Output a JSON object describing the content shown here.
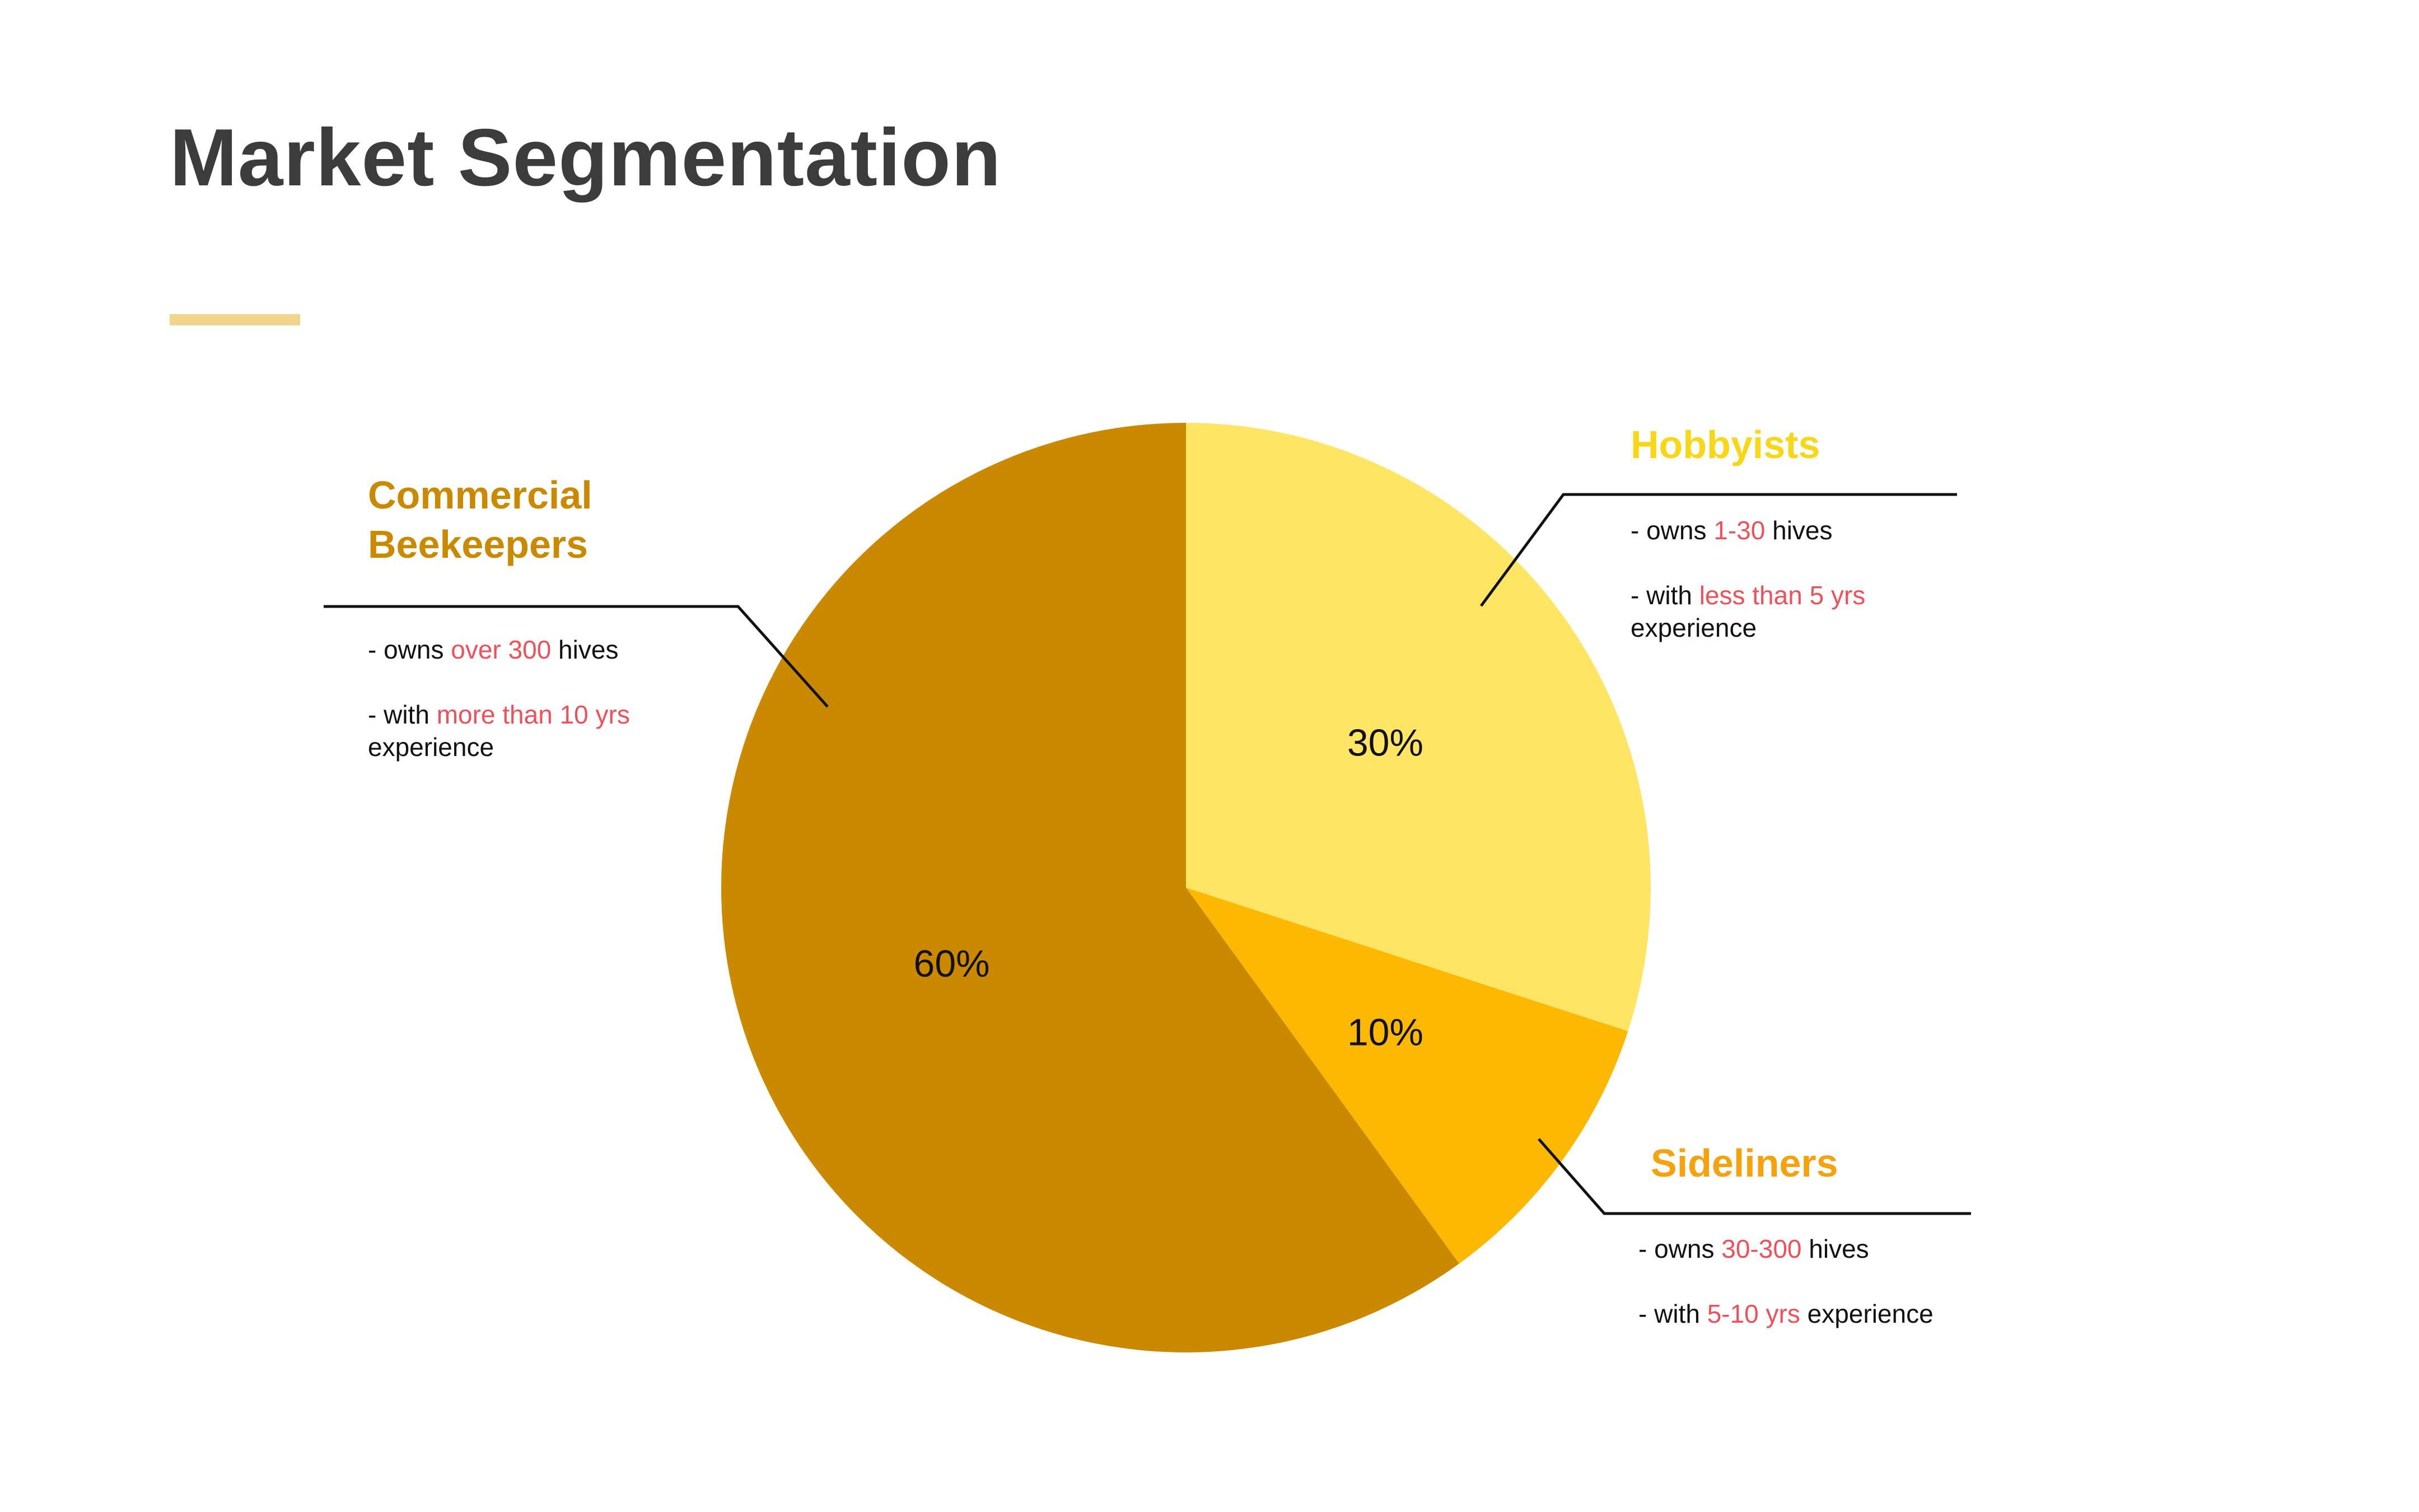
{
  "slide": {
    "title": "Market Segmentation",
    "accent_color": "#f2d48c"
  },
  "chart_data": {
    "type": "pie",
    "slices": [
      {
        "label": "Hobbyists",
        "value": 30,
        "display": "30%",
        "color": "#ffe564"
      },
      {
        "label": "Sideliners",
        "value": 10,
        "display": "10%",
        "color": "#fdb802"
      },
      {
        "label": "Commercial Beekeepers",
        "value": 60,
        "display": "60%",
        "color": "#cb8900"
      }
    ]
  },
  "segments": {
    "commercial": {
      "title_line1": "Commercial",
      "title_line2": "Beekeepers",
      "color": "#cb8900",
      "owns_prefix": "- owns ",
      "owns_value": "over 300",
      "owns_suffix": " hives",
      "exp_prefix": "- with ",
      "exp_value": "more than 10 yrs",
      "exp_suffix": "experience"
    },
    "hobbyists": {
      "title": "Hobbyists",
      "color": "#f9d717",
      "owns_prefix": "- owns ",
      "owns_value": "1-30",
      "owns_suffix": " hives",
      "exp_prefix": "- with ",
      "exp_value": "less than 5 yrs",
      "exp_suffix": "experience"
    },
    "sideliners": {
      "title": "Sideliners",
      "color": "#f5a20d",
      "owns_prefix": "- owns ",
      "owns_value": "30-300",
      "owns_suffix": " hives",
      "exp_prefix": "- with ",
      "exp_value": "5-10 yrs",
      "exp_suffix": " experience"
    }
  },
  "highlight_color": "#f0505a"
}
